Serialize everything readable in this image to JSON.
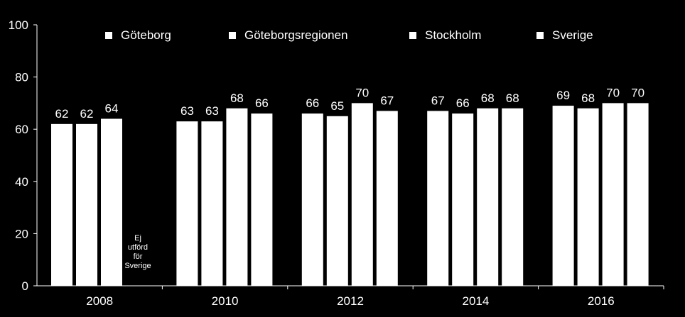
{
  "chart_data": {
    "type": "bar",
    "categories": [
      "2008",
      "2010",
      "2012",
      "2014",
      "2016"
    ],
    "series": [
      {
        "name": "Göteborg",
        "values": [
          62,
          63,
          66,
          67,
          69
        ]
      },
      {
        "name": "Göteborgsregionen",
        "values": [
          62,
          63,
          65,
          66,
          68
        ]
      },
      {
        "name": "Stockholm",
        "values": [
          64,
          68,
          70,
          68,
          70
        ]
      },
      {
        "name": "Sverige",
        "values": [
          null,
          66,
          67,
          68,
          70
        ]
      }
    ],
    "data_labels": [
      [
        "62",
        "62",
        "64",
        ""
      ],
      [
        "63",
        "63",
        "68",
        "66"
      ],
      [
        "66",
        "65",
        "70",
        "67"
      ],
      [
        "67",
        "66",
        "68",
        "68"
      ],
      [
        "69",
        "68",
        "70",
        "70"
      ]
    ],
    "ylim": [
      0,
      100
    ],
    "yticks": [
      "0",
      "20",
      "40",
      "60",
      "80",
      "100"
    ],
    "legend_position": "top",
    "grid": false,
    "annotation_lines": [
      "Ej",
      "utförd",
      "för",
      "Sverige"
    ],
    "colors": {
      "background": "#000000",
      "bars": "#ffffff",
      "text": "#ffffff"
    }
  }
}
